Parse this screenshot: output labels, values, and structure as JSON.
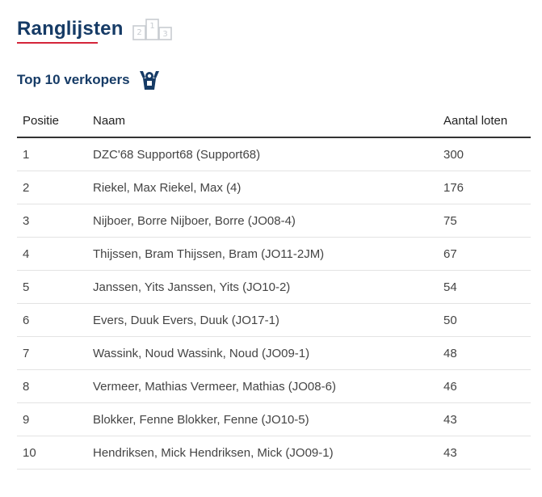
{
  "header": {
    "title": "Ranglijsten",
    "podium_icon": "podium-icon",
    "podium_numbers": [
      "2",
      "1",
      "3"
    ]
  },
  "section": {
    "title": "Top 10 verkopers",
    "icon": "trophy-winner-icon"
  },
  "table": {
    "columns": [
      "Positie",
      "Naam",
      "Aantal loten"
    ],
    "rows": [
      {
        "position": "1",
        "name": "DZC'68 Support68 (Support68)",
        "count": "300"
      },
      {
        "position": "2",
        "name": "Riekel, Max Riekel, Max (4)",
        "count": "176"
      },
      {
        "position": "3",
        "name": "Nijboer, Borre Nijboer, Borre (JO08-4)",
        "count": "75"
      },
      {
        "position": "4",
        "name": "Thijssen, Bram Thijssen, Bram (JO11-2JM)",
        "count": "67"
      },
      {
        "position": "5",
        "name": "Janssen, Yits Janssen, Yits (JO10-2)",
        "count": "54"
      },
      {
        "position": "6",
        "name": "Evers, Duuk Evers, Duuk (JO17-1)",
        "count": "50"
      },
      {
        "position": "7",
        "name": "Wassink, Noud Wassink, Noud (JO09-1)",
        "count": "48"
      },
      {
        "position": "8",
        "name": "Vermeer, Mathias Vermeer, Mathias (JO08-6)",
        "count": "46"
      },
      {
        "position": "9",
        "name": "Blokker, Fenne Blokker, Fenne (JO10-5)",
        "count": "43"
      },
      {
        "position": "10",
        "name": "Hendriksen, Mick Hendriksen, Mick (JO09-1)",
        "count": "43"
      }
    ]
  },
  "colors": {
    "title": "#163b66",
    "accent": "#d4253a",
    "podium_icon": "#c8ccd1"
  }
}
